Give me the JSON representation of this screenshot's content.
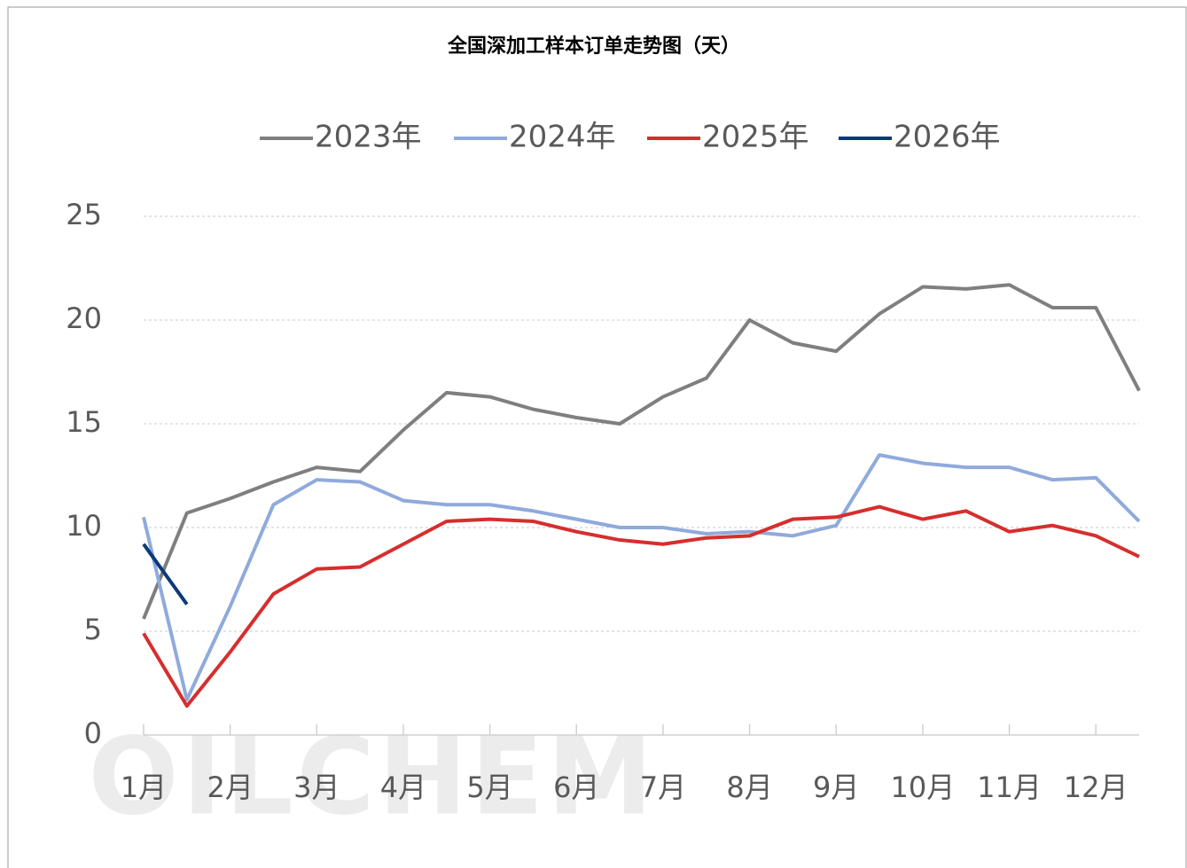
{
  "chart_data": {
    "type": "line",
    "title": "全国深加工样本订单走势图（天）",
    "watermark": "OILCHEM",
    "categories": [
      "1月",
      null,
      "2月",
      null,
      "3月",
      null,
      "4月",
      null,
      "5月",
      null,
      "6月",
      null,
      "7月",
      null,
      "8月",
      null,
      "9月",
      null,
      "10月",
      null,
      "11月",
      null,
      "12月",
      null
    ],
    "series": [
      {
        "name": "2023年",
        "color": "#7f7f7f",
        "values": [
          5.6,
          10.7,
          11.4,
          12.2,
          12.9,
          12.7,
          14.7,
          16.5,
          16.3,
          15.7,
          15.3,
          15.0,
          16.3,
          17.2,
          20.0,
          18.9,
          18.5,
          20.3,
          21.6,
          21.5,
          21.7,
          20.6,
          20.6,
          16.6
        ]
      },
      {
        "name": "2024年",
        "color": "#8faadc",
        "values": [
          10.5,
          1.7,
          6.2,
          11.1,
          12.3,
          12.2,
          11.3,
          11.1,
          11.1,
          10.8,
          10.4,
          10.0,
          10.0,
          9.7,
          9.8,
          9.6,
          10.1,
          13.5,
          13.1,
          12.9,
          12.9,
          12.3,
          12.4,
          10.3
        ]
      },
      {
        "name": "2025年",
        "color": "#d62e2e",
        "values": [
          4.9,
          1.4,
          4.0,
          6.8,
          8.0,
          8.1,
          9.2,
          10.3,
          10.4,
          10.3,
          9.8,
          9.4,
          9.2,
          9.5,
          9.6,
          10.4,
          10.5,
          11.0,
          10.4,
          10.8,
          9.8,
          10.1,
          9.6,
          8.6
        ]
      },
      {
        "name": "2026年",
        "color": "#0b3a7a",
        "values": [
          9.2,
          6.3,
          null,
          null,
          null,
          null,
          null,
          null,
          null,
          null,
          null,
          null,
          null,
          null,
          null,
          null,
          null,
          null,
          null,
          null,
          null,
          null,
          null,
          null
        ]
      }
    ],
    "ylim": [
      0,
      25
    ],
    "yticks": [
      0,
      5,
      10,
      15,
      20,
      25
    ],
    "grid": true,
    "legend": "top"
  }
}
